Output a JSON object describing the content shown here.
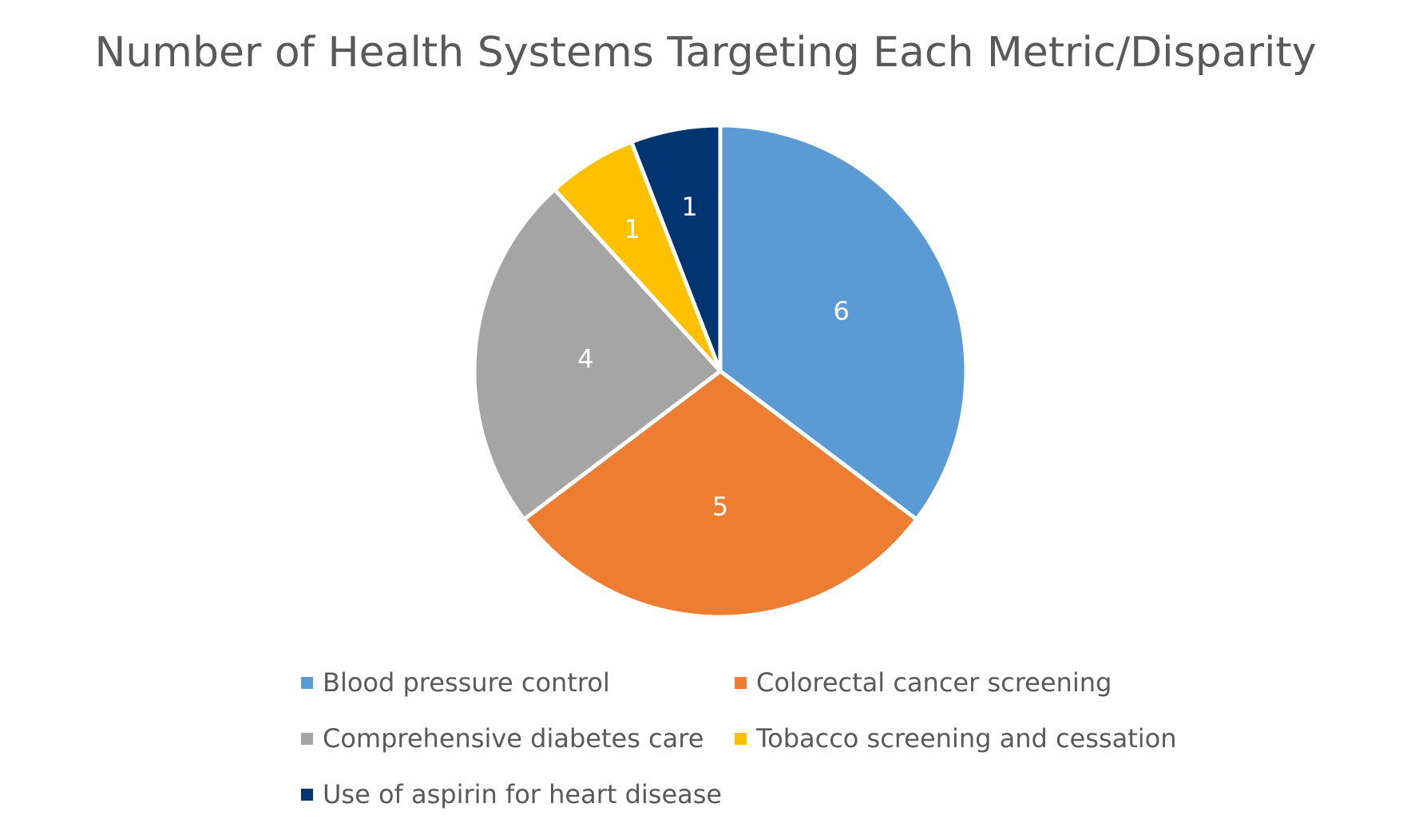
{
  "chart_data": {
    "type": "pie",
    "title": "Number of Health Systems Targeting Each Metric/Disparity",
    "categories": [
      "Blood pressure control",
      "Colorectal cancer screening",
      "Comprehensive diabetes care",
      "Tobacco screening and cessation",
      "Use of aspirin for heart disease"
    ],
    "values": [
      6,
      5,
      4,
      1,
      1
    ],
    "colors": [
      "#5B9BD5",
      "#ED7D31",
      "#A5A5A5",
      "#FFC000",
      "#003570"
    ],
    "data_labels": [
      "6",
      "5",
      "4",
      "1",
      "1"
    ],
    "start_angle_degrees": 0,
    "direction": "clockwise",
    "legend_position": "bottom",
    "legend_columns": 2
  }
}
